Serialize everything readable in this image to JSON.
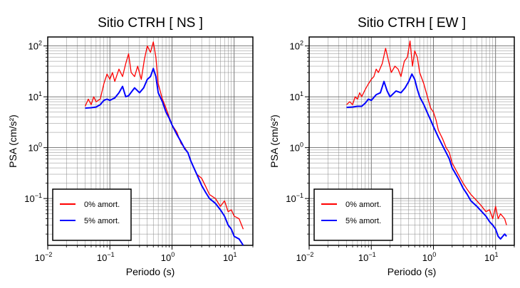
{
  "chart_data": [
    {
      "type": "line",
      "title": "Sitio CTRH [ NS ]",
      "xlabel": "Periodo (s)",
      "ylabel": "PSA (cm/s²)",
      "xscale": "log",
      "yscale": "log",
      "xlim": [
        0.01,
        20
      ],
      "ylim": [
        0.012,
        150
      ],
      "grid": true,
      "legend_position": "bottom-left",
      "x_ticks": [
        {
          "base": "10",
          "exp": "−2"
        },
        {
          "base": "10",
          "exp": "−1"
        },
        {
          "base": "10",
          "exp": "0"
        },
        {
          "base": "10",
          "exp": "1"
        }
      ],
      "y_ticks": [
        {
          "base": "10",
          "exp": "−1"
        },
        {
          "base": "10",
          "exp": "0"
        },
        {
          "base": "10",
          "exp": "1"
        },
        {
          "base": "10",
          "exp": "2"
        }
      ],
      "series": [
        {
          "name": "0% amort.",
          "color": "#ff0000",
          "x": [
            0.04,
            0.045,
            0.05,
            0.055,
            0.06,
            0.07,
            0.08,
            0.09,
            0.1,
            0.11,
            0.12,
            0.14,
            0.16,
            0.18,
            0.2,
            0.22,
            0.25,
            0.28,
            0.32,
            0.36,
            0.4,
            0.45,
            0.5,
            0.55,
            0.6,
            0.7,
            0.8,
            0.9,
            1.0,
            1.2,
            1.4,
            1.6,
            1.8,
            2.0,
            2.5,
            3.0,
            3.5,
            4.0,
            5.0,
            6.0,
            7.0,
            8.0,
            9.0,
            10.0,
            12.0,
            14.0
          ],
          "values": [
            6.5,
            9,
            7,
            10,
            8,
            9,
            18,
            28,
            22,
            30,
            20,
            35,
            25,
            45,
            70,
            30,
            25,
            40,
            22,
            55,
            100,
            75,
            120,
            60,
            18,
            9,
            6,
            4,
            2.8,
            2.0,
            1.2,
            1.0,
            0.8,
            0.55,
            0.3,
            0.25,
            0.17,
            0.12,
            0.1,
            0.07,
            0.09,
            0.055,
            0.06,
            0.045,
            0.04,
            0.025
          ]
        },
        {
          "name": "5% amort.",
          "color": "#0000ff",
          "x": [
            0.04,
            0.05,
            0.06,
            0.07,
            0.08,
            0.09,
            0.1,
            0.12,
            0.14,
            0.16,
            0.18,
            0.2,
            0.25,
            0.3,
            0.35,
            0.4,
            0.45,
            0.5,
            0.55,
            0.6,
            0.7,
            0.8,
            0.9,
            1.0,
            1.2,
            1.4,
            1.6,
            1.8,
            2.0,
            2.5,
            3.0,
            3.5,
            4.0,
            5.0,
            6.0,
            7.0,
            8.0,
            9.0,
            10.0,
            12.0,
            14.0
          ],
          "values": [
            6.0,
            6.1,
            6.3,
            7.0,
            8.5,
            9.0,
            8.5,
            9.5,
            12,
            16,
            10,
            10.5,
            15,
            12,
            15,
            22,
            25,
            36,
            25,
            12,
            8,
            5,
            3.8,
            2.8,
            1.8,
            1.3,
            0.95,
            0.8,
            0.55,
            0.3,
            0.18,
            0.13,
            0.1,
            0.08,
            0.06,
            0.045,
            0.03,
            0.025,
            0.018,
            0.016,
            0.012
          ]
        }
      ]
    },
    {
      "type": "line",
      "title": "Sitio CTRH [ EW ]",
      "xlabel": "Periodo (s)",
      "ylabel": "PSA (cm/s²)",
      "xscale": "log",
      "yscale": "log",
      "xlim": [
        0.01,
        20
      ],
      "ylim": [
        0.012,
        150
      ],
      "grid": true,
      "legend_position": "bottom-left",
      "x_ticks": [
        {
          "base": "10",
          "exp": "−2"
        },
        {
          "base": "10",
          "exp": "−1"
        },
        {
          "base": "10",
          "exp": "0"
        },
        {
          "base": "10",
          "exp": "1"
        }
      ],
      "y_ticks": [
        {
          "base": "10",
          "exp": "−1"
        },
        {
          "base": "10",
          "exp": "0"
        },
        {
          "base": "10",
          "exp": "1"
        },
        {
          "base": "10",
          "exp": "2"
        }
      ],
      "series": [
        {
          "name": "0% amort.",
          "color": "#ff0000",
          "x": [
            0.04,
            0.045,
            0.05,
            0.055,
            0.06,
            0.065,
            0.07,
            0.08,
            0.09,
            0.1,
            0.11,
            0.12,
            0.13,
            0.15,
            0.17,
            0.19,
            0.21,
            0.24,
            0.27,
            0.3,
            0.34,
            0.38,
            0.42,
            0.46,
            0.5,
            0.55,
            0.6,
            0.7,
            0.8,
            0.9,
            1.0,
            1.1,
            1.2,
            1.4,
            1.6,
            1.8,
            2.0,
            2.5,
            3.0,
            3.5,
            4.0,
            5.0,
            6.0,
            7.0,
            8.0,
            9.0,
            10.0,
            11.0,
            12.0,
            14.0,
            15.0
          ],
          "values": [
            7,
            8,
            7,
            10,
            9,
            12,
            10,
            14,
            18,
            22,
            25,
            35,
            30,
            45,
            90,
            50,
            30,
            40,
            35,
            25,
            50,
            60,
            125,
            40,
            80,
            60,
            30,
            18,
            10,
            6,
            5,
            3.5,
            2.2,
            1.5,
            1.0,
            0.8,
            0.5,
            0.3,
            0.2,
            0.15,
            0.12,
            0.09,
            0.07,
            0.055,
            0.06,
            0.04,
            0.07,
            0.04,
            0.05,
            0.04,
            0.03
          ]
        },
        {
          "name": "5% amort.",
          "color": "#0000ff",
          "x": [
            0.04,
            0.05,
            0.06,
            0.07,
            0.08,
            0.09,
            0.1,
            0.12,
            0.14,
            0.16,
            0.18,
            0.2,
            0.25,
            0.3,
            0.35,
            0.4,
            0.45,
            0.5,
            0.55,
            0.6,
            0.7,
            0.8,
            0.9,
            1.0,
            1.2,
            1.4,
            1.6,
            1.8,
            2.0,
            2.5,
            3.0,
            3.5,
            4.0,
            5.0,
            6.0,
            7.0,
            8.0,
            9.0,
            10.0,
            11.0,
            12.0,
            14.0,
            15.0
          ],
          "values": [
            6.2,
            6.3,
            6.5,
            6.5,
            7.5,
            9,
            8.5,
            11,
            12,
            20,
            13,
            10,
            13,
            12,
            15,
            20,
            28,
            22,
            14,
            10,
            7,
            4.8,
            3.5,
            2.6,
            1.6,
            1.1,
            0.8,
            0.6,
            0.4,
            0.25,
            0.16,
            0.12,
            0.09,
            0.07,
            0.055,
            0.045,
            0.035,
            0.03,
            0.025,
            0.018,
            0.016,
            0.02,
            0.018
          ]
        }
      ]
    }
  ]
}
